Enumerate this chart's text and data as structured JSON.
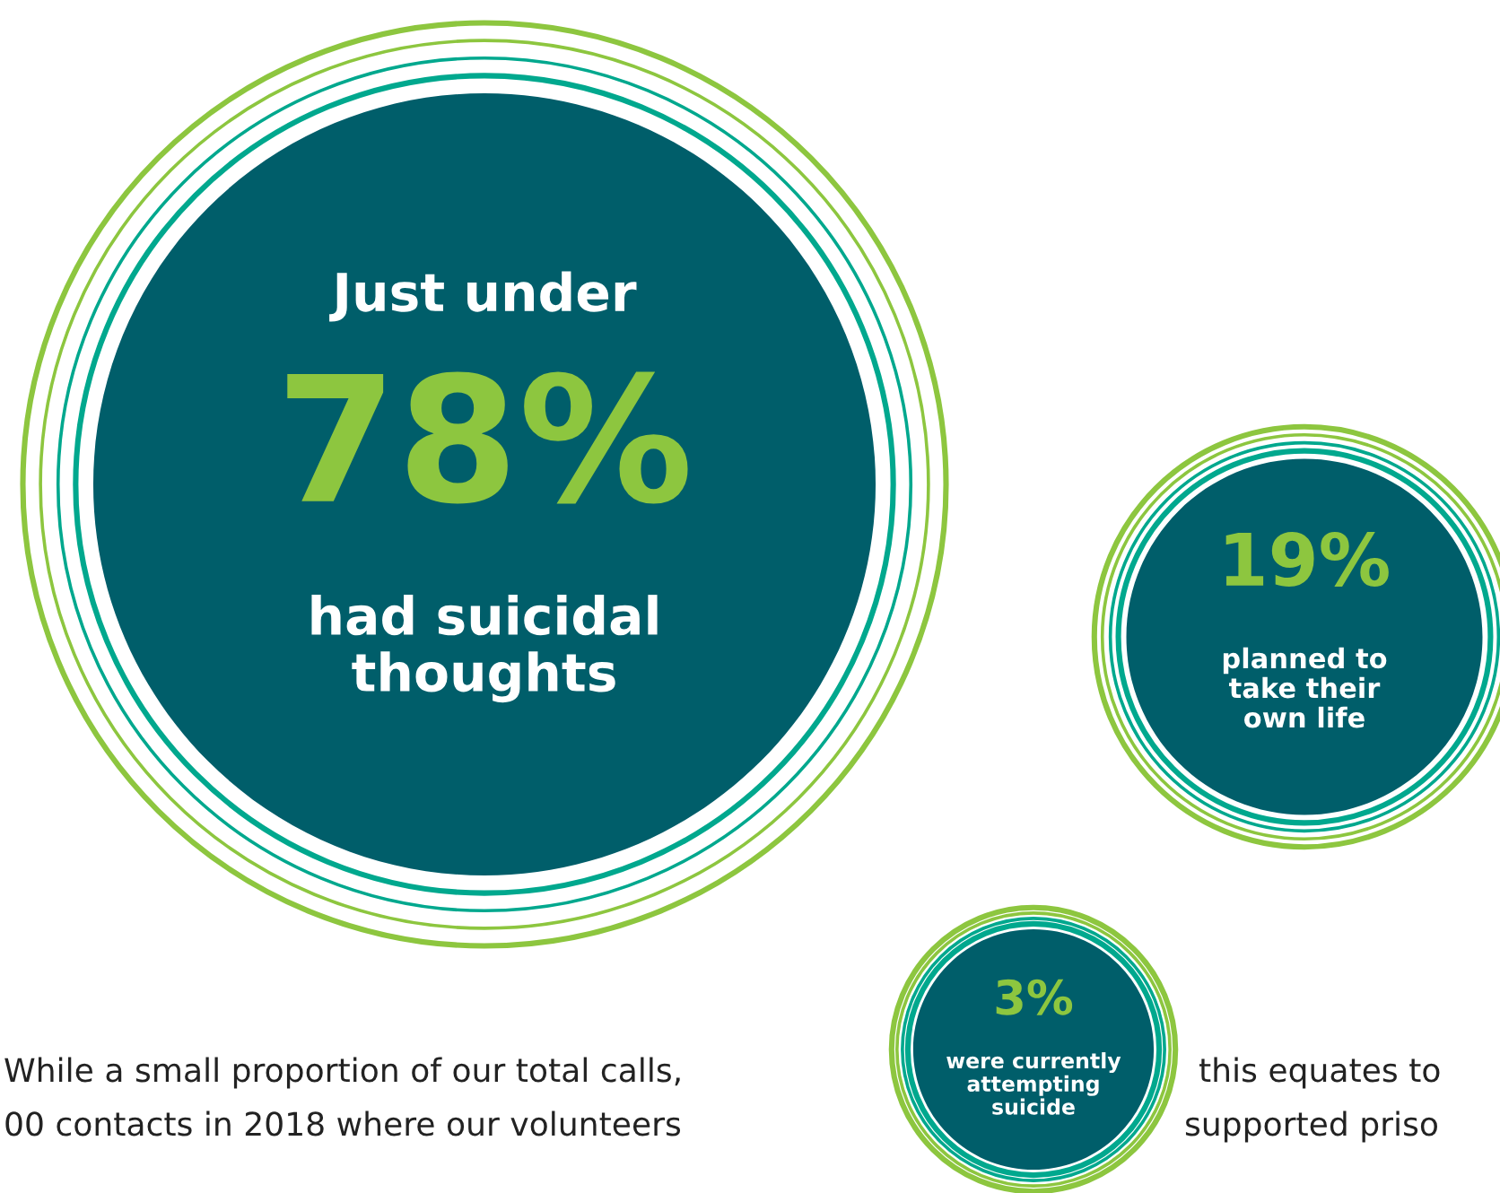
{
  "chart_data": {
    "type": "other",
    "categories": [
      "had suicidal\nthoughts",
      "planned to\ntake their\nown life",
      "were currently\nattempting\nsuicide"
    ],
    "values": [
      78,
      19,
      3
    ],
    "value_labels": [
      "78%",
      "19%",
      "3%"
    ],
    "colors": [
      "#005e6a",
      "#005e6a",
      "#005e6a"
    ],
    "annotations": [
      "Just under",
      "While a small proportion of our total calls,",
      "this equates to",
      "00 contacts in 2018 where our volunteers",
      "supported priso"
    ]
  }
}
